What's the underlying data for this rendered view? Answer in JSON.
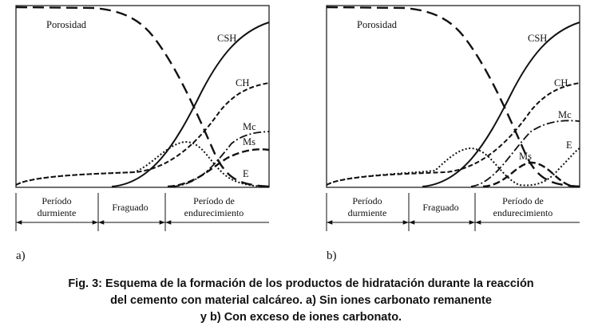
{
  "panels": [
    {
      "letter": "a)",
      "curve_labels": {
        "porosity": "Porosidad",
        "csh": "CSH",
        "ch": "CH",
        "mc": "Mc",
        "ms": "Ms",
        "e": "E"
      },
      "periods": [
        {
          "line1": "Período",
          "line2": "durmiente"
        },
        {
          "line1": "Fraguado",
          "line2": ""
        },
        {
          "line1": "Período de",
          "line2": "endurecimiento"
        }
      ]
    },
    {
      "letter": "b)",
      "curve_labels": {
        "porosity": "Porosidad",
        "csh": "CSH",
        "ch": "CH",
        "mc": "Mc",
        "ms": "Ms",
        "e": "E"
      },
      "periods": [
        {
          "line1": "Período",
          "line2": "durmiente"
        },
        {
          "line1": "Fraguado",
          "line2": ""
        },
        {
          "line1": "Período de",
          "line2": "endurecimiento"
        }
      ]
    }
  ],
  "caption": {
    "line1": "Fig. 3: Esquema de la formación de los productos de hidratación durante la reacción",
    "line2": "del cemento con material calcáreo. a) Sin iones carbonato remanente",
    "line3": "y b) Con exceso de iones carbonato."
  }
}
